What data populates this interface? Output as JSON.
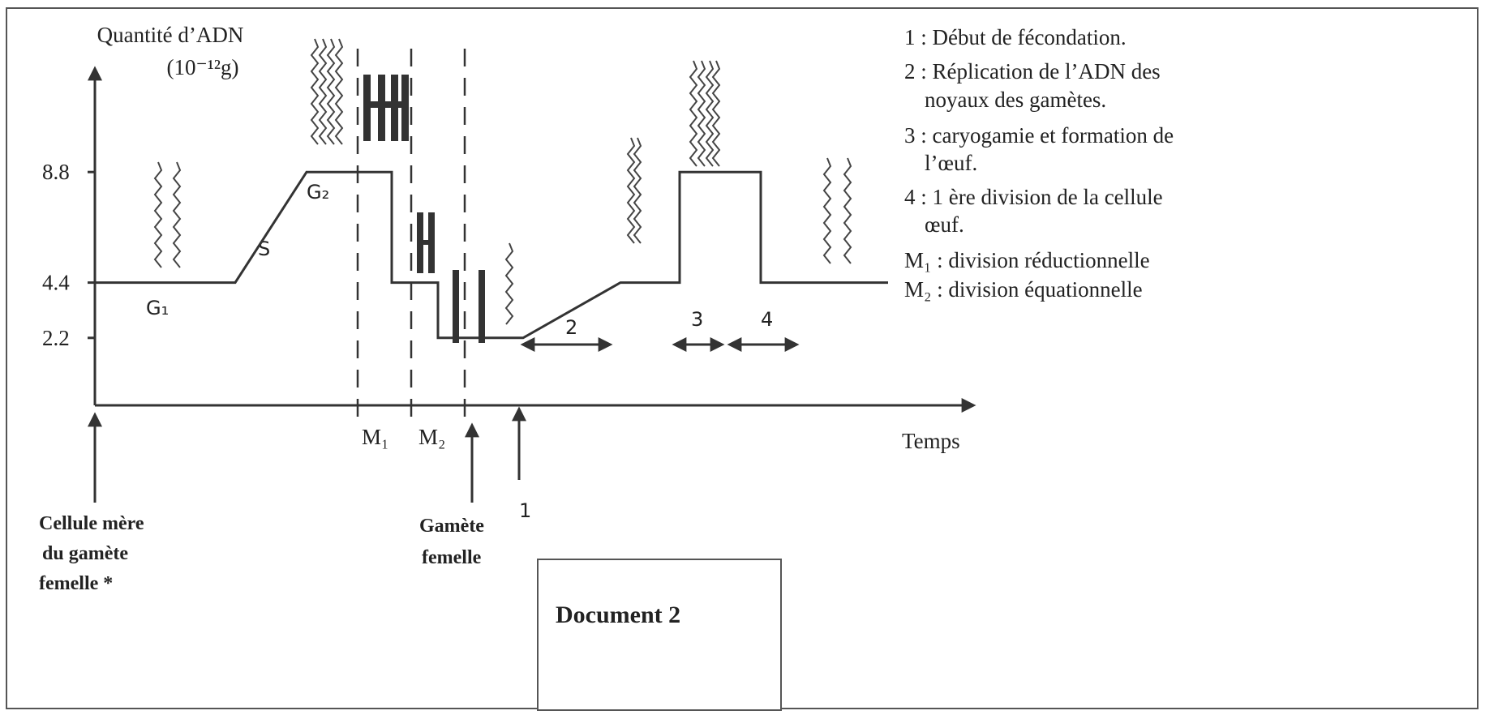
{
  "y_axis": {
    "label": "Quantité d’ADN",
    "unit": "(10⁻¹²g)",
    "ticks": [
      8.8,
      4.4,
      2.2
    ]
  },
  "x_axis": {
    "label": "Temps"
  },
  "phases": [
    "G₁",
    "S",
    "G₂",
    "M₁",
    "M₂"
  ],
  "steps": [
    "1",
    "2",
    "3",
    "4"
  ],
  "markers": {
    "mother_cell": [
      "Cellule mère",
      "du gamète",
      "femelle *"
    ],
    "gamete": [
      "Gamète",
      "femelle"
    ]
  },
  "legend": [
    "1 : Début de fécondation.",
    "2 : Réplication de  l’ADN des",
    "noyaux des gamètes.",
    "3 : caryogamie et formation de",
    "l’œuf.",
    "4 : 1 ère division de la cellule",
    "œuf.",
    "M₁ : division réductionnelle",
    "M₂ : division équationnelle"
  ],
  "document": "Document 2"
}
